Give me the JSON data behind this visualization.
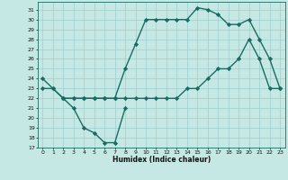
{
  "xlabel": "Humidex (Indice chaleur)",
  "xlim": [
    -0.5,
    23.5
  ],
  "ylim": [
    17,
    31.8
  ],
  "yticks": [
    17,
    18,
    19,
    20,
    21,
    22,
    23,
    24,
    25,
    26,
    27,
    28,
    29,
    30,
    31
  ],
  "xticks": [
    0,
    1,
    2,
    3,
    4,
    5,
    6,
    7,
    8,
    9,
    10,
    11,
    12,
    13,
    14,
    15,
    16,
    17,
    18,
    19,
    20,
    21,
    22,
    23
  ],
  "background_color": "#c5e8e5",
  "grid_color": "#9ecece",
  "line_color": "#1a6b62",
  "line1_x": [
    0,
    1,
    2,
    3,
    4,
    5,
    6,
    7,
    8
  ],
  "line1_y": [
    24,
    23,
    22,
    21,
    19,
    18.5,
    17.5,
    17.5,
    21
  ],
  "line2_x": [
    2,
    3,
    4,
    5,
    6,
    7,
    8,
    9,
    10,
    11,
    12,
    13,
    14,
    15,
    16,
    17,
    18,
    19,
    20,
    21,
    22,
    23
  ],
  "line2_y": [
    22,
    22,
    22,
    22,
    22,
    22,
    25,
    27.5,
    30,
    30,
    30,
    30,
    30,
    31.2,
    31,
    30.5,
    29.5,
    29.5,
    30,
    28,
    26,
    23
  ],
  "line3_x": [
    0,
    1,
    2,
    3,
    4,
    5,
    6,
    7,
    8,
    9,
    10,
    11,
    12,
    13,
    14,
    15,
    16,
    17,
    18,
    19,
    20,
    21,
    22,
    23
  ],
  "line3_y": [
    23,
    23,
    22,
    22,
    22,
    22,
    22,
    22,
    22,
    22,
    22,
    22,
    22,
    22,
    23,
    23,
    24,
    25,
    25,
    26,
    28,
    26,
    23,
    23
  ],
  "marker": "D",
  "markersize": 2.2,
  "linewidth": 1.0
}
